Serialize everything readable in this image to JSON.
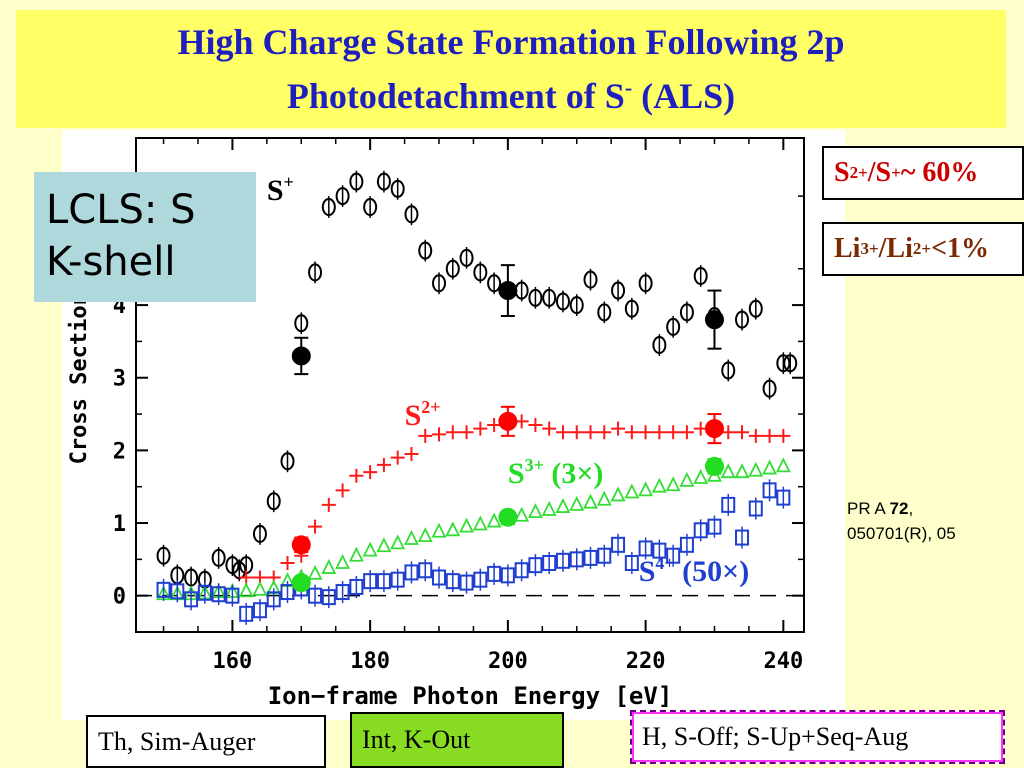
{
  "title": {
    "line1": "High Charge State Formation Following 2p",
    "line2_pre": "Photodetachment of S",
    "line2_sup": "-",
    "line2_post": " (ALS)"
  },
  "lcls_box": {
    "line1": "LCLS: S",
    "line2": "K-shell"
  },
  "ratio_s": {
    "a": "S",
    "a_sup": "2+",
    "b": "/S",
    "b_sup": "+",
    "c": "~ 60%"
  },
  "ratio_li": {
    "a": "Li",
    "a_sup": "3+",
    "b": "/Li",
    "b_sup": "2+",
    "c": "<1%"
  },
  "reference": {
    "journal": "PR A ",
    "volume": "72",
    "rest1": ",",
    "rest2": "050701(R), 05"
  },
  "bottom": {
    "th": "Th, Sim-Auger",
    "int": "Int, K-Out",
    "h": "H, S-Off; S-Up+Seq-Aug"
  },
  "chart_data": {
    "type": "scatter",
    "xlabel": "Ion−frame Photon Energy [eV]",
    "ylabel": "Cross Section [",
    "xlim": [
      146,
      243
    ],
    "ylim": [
      -0.5,
      6.3
    ],
    "xticks": [
      "160",
      "180",
      "200",
      "220",
      "240"
    ],
    "xtick_values": [
      160,
      180,
      200,
      220,
      240
    ],
    "yticks": [
      "0",
      "1",
      "2",
      "3",
      "4"
    ],
    "ytick_values": [
      0,
      1,
      2,
      3,
      4
    ],
    "grid": false,
    "series": [
      {
        "name": "S+",
        "marker": "circle-open",
        "color": "#000000",
        "x": [
          150,
          152,
          154,
          156,
          158,
          160,
          161,
          162,
          164,
          166,
          168,
          170,
          172,
          174,
          176,
          178,
          180,
          182,
          184,
          186,
          188,
          190,
          192,
          194,
          196,
          198,
          200,
          202,
          204,
          206,
          208,
          210,
          212,
          214,
          216,
          218,
          220,
          222,
          224,
          226,
          228,
          230,
          232,
          234,
          236,
          238,
          240,
          241
        ],
        "y": [
          0.55,
          0.28,
          0.25,
          0.22,
          0.52,
          0.42,
          0.35,
          0.42,
          0.85,
          1.3,
          1.85,
          3.75,
          4.45,
          5.35,
          5.5,
          5.7,
          5.35,
          5.7,
          5.6,
          5.25,
          4.75,
          4.3,
          4.5,
          4.65,
          4.45,
          4.3,
          4.2,
          4.2,
          4.1,
          4.1,
          4.05,
          4.0,
          4.35,
          3.9,
          4.2,
          3.95,
          4.3,
          3.45,
          3.7,
          3.9,
          4.4,
          3.85,
          3.1,
          3.8,
          3.95,
          2.85,
          3.2,
          3.2
        ],
        "yerr": [
          0.15,
          0.15,
          0.15,
          0.15,
          0.15,
          0.15,
          0.15,
          0.15,
          0.15,
          0.15,
          0.15,
          0.15,
          0.15,
          0.15,
          0.15,
          0.15,
          0.15,
          0.15,
          0.15,
          0.15,
          0.15,
          0.15,
          0.15,
          0.15,
          0.15,
          0.15,
          0.15,
          0.15,
          0.15,
          0.15,
          0.15,
          0.15,
          0.15,
          0.15,
          0.15,
          0.15,
          0.15,
          0.15,
          0.15,
          0.15,
          0.15,
          0.15,
          0.15,
          0.15,
          0.15,
          0.15,
          0.15,
          0.15
        ]
      },
      {
        "name": "S2+",
        "marker": "plus",
        "color": "#ff1a1a",
        "x": [
          162,
          164,
          166,
          168,
          170,
          172,
          174,
          176,
          178,
          180,
          182,
          184,
          186,
          188,
          190,
          192,
          194,
          196,
          198,
          200,
          202,
          204,
          206,
          208,
          210,
          212,
          214,
          216,
          218,
          220,
          222,
          224,
          226,
          228,
          230,
          232,
          234,
          236,
          238,
          240
        ],
        "y": [
          0.25,
          0.25,
          0.25,
          0.45,
          0.55,
          0.95,
          1.25,
          1.45,
          1.65,
          1.7,
          1.8,
          1.9,
          1.95,
          2.2,
          2.22,
          2.25,
          2.25,
          2.3,
          2.35,
          2.35,
          2.4,
          2.35,
          2.3,
          2.25,
          2.25,
          2.25,
          2.25,
          2.3,
          2.25,
          2.25,
          2.25,
          2.25,
          2.25,
          2.3,
          2.3,
          2.25,
          2.25,
          2.2,
          2.2,
          2.2
        ]
      },
      {
        "name": "S3+",
        "marker": "triangle-open",
        "color": "#33dd33",
        "x": [
          150,
          152,
          154,
          156,
          158,
          160,
          162,
          164,
          166,
          168,
          170,
          172,
          174,
          176,
          178,
          180,
          182,
          184,
          186,
          188,
          190,
          192,
          194,
          196,
          198,
          200,
          202,
          204,
          206,
          208,
          210,
          212,
          214,
          216,
          218,
          220,
          222,
          224,
          226,
          228,
          230,
          232,
          234,
          236,
          238,
          240
        ],
        "y": [
          0.02,
          0.02,
          0.02,
          0.03,
          0.05,
          0.05,
          0.06,
          0.08,
          0.1,
          0.2,
          0.25,
          0.3,
          0.38,
          0.45,
          0.55,
          0.62,
          0.68,
          0.72,
          0.78,
          0.82,
          0.88,
          0.9,
          0.95,
          0.98,
          1.02,
          1.05,
          1.1,
          1.15,
          1.18,
          1.22,
          1.25,
          1.28,
          1.32,
          1.38,
          1.42,
          1.45,
          1.5,
          1.52,
          1.58,
          1.62,
          1.65,
          1.7,
          1.7,
          1.72,
          1.75,
          1.78
        ]
      },
      {
        "name": "S4+",
        "marker": "square-open",
        "color": "#1f3fd0",
        "x": [
          150,
          152,
          154,
          156,
          158,
          160,
          162,
          164,
          166,
          168,
          170,
          172,
          174,
          176,
          178,
          180,
          182,
          184,
          186,
          188,
          190,
          192,
          194,
          196,
          198,
          200,
          202,
          204,
          206,
          208,
          210,
          212,
          214,
          216,
          218,
          220,
          222,
          224,
          226,
          228,
          230,
          232,
          234,
          236,
          238,
          240
        ],
        "y": [
          0.08,
          0.06,
          -0.05,
          0.04,
          0.02,
          0.0,
          -0.25,
          -0.2,
          -0.05,
          0.05,
          0.1,
          0.0,
          -0.02,
          0.05,
          0.12,
          0.2,
          0.2,
          0.22,
          0.32,
          0.35,
          0.25,
          0.2,
          0.18,
          0.22,
          0.3,
          0.28,
          0.35,
          0.42,
          0.45,
          0.48,
          0.5,
          0.52,
          0.55,
          0.7,
          0.45,
          0.65,
          0.62,
          0.55,
          0.7,
          0.9,
          0.95,
          1.25,
          0.8,
          1.2,
          1.45,
          1.35
        ]
      }
    ],
    "highlight_points": [
      {
        "series": "S+",
        "color": "#000000",
        "x": [
          170,
          200,
          230
        ],
        "y": [
          3.3,
          4.2,
          3.8
        ],
        "yerr": [
          0.25,
          0.35,
          0.4
        ]
      },
      {
        "series": "S2+",
        "color": "#ff0000",
        "x": [
          170,
          200,
          230
        ],
        "y": [
          0.7,
          2.4,
          2.3
        ],
        "yerr": [
          0.1,
          0.2,
          0.2
        ]
      },
      {
        "series": "S3+",
        "color": "#22dd22",
        "x": [
          170,
          200,
          230
        ],
        "y": [
          0.18,
          1.08,
          1.78
        ],
        "yerr": [
          0.05,
          0.08,
          0.1
        ]
      }
    ],
    "annotations": [
      {
        "text": "S",
        "sup": "+",
        "color": "#000000",
        "x": 165,
        "y": 5.45
      },
      {
        "text": "S",
        "sup": "2+",
        "color": "#ff1a1a",
        "x": 185,
        "y": 2.35
      },
      {
        "text": "S",
        "sup": "3+",
        "after": " (3×)",
        "color": "#22dd22",
        "x": 200,
        "y": 1.55
      },
      {
        "text": "S",
        "sup": "4+",
        "after": " (50×)",
        "color": "#1f3fd0",
        "x": 219,
        "y": 0.2
      }
    ],
    "zero_line": true
  }
}
